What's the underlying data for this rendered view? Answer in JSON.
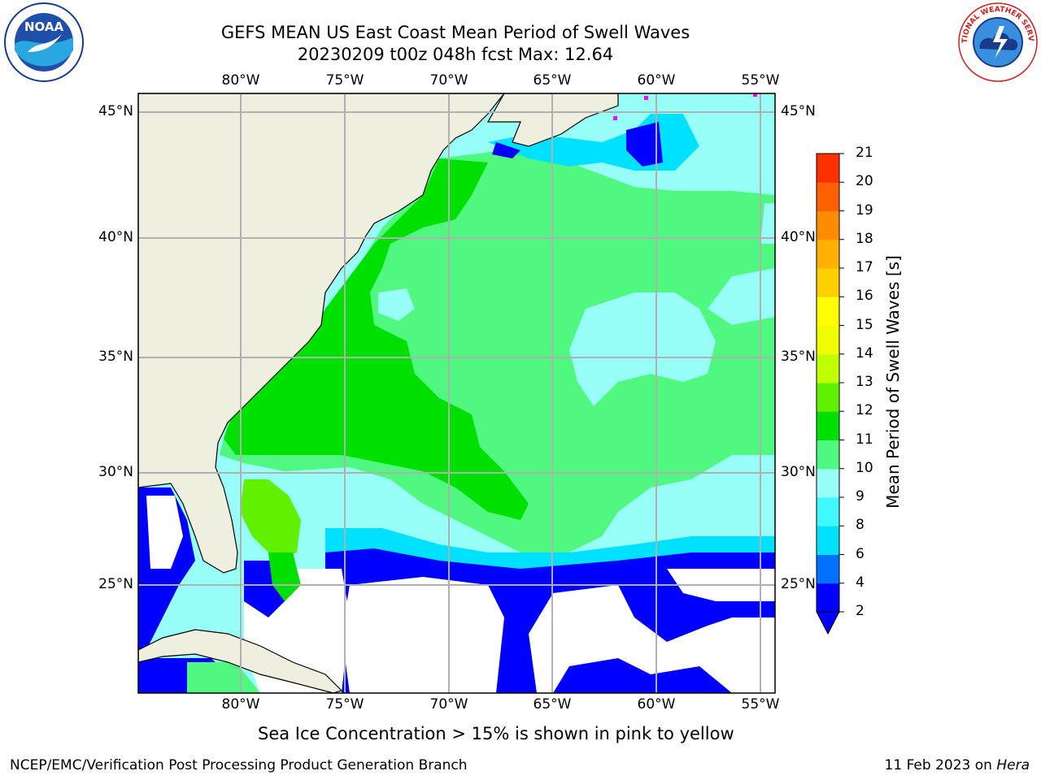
{
  "header": {
    "title_line1": "GEFS MEAN US East Coast Mean Period of Swell Waves",
    "title_line2": "20230209 t00z 048h fcst   Max: 12.64"
  },
  "logos": {
    "noaa_text": "NOAA",
    "nws_text": "NATIONAL WEATHER SERVICE"
  },
  "map": {
    "lon_labels": [
      "80°W",
      "75°W",
      "70°W",
      "65°W",
      "60°W",
      "55°W"
    ],
    "lat_labels": [
      "45°N",
      "40°N",
      "35°N",
      "30°N",
      "25°N"
    ],
    "colors": {
      "land": "#efefe0",
      "gridline": "#b0b0b0",
      "no_data": "#ffffff",
      "sea_ice": "#ff00ff"
    }
  },
  "colorbar": {
    "label": "Mean Period of Swell Waves [s]",
    "ticks": [
      "2",
      "4",
      "6",
      "8",
      "9",
      "10",
      "11",
      "12",
      "13",
      "14",
      "15",
      "16",
      "17",
      "18",
      "19",
      "20",
      "21"
    ],
    "colors": [
      "#0000ff",
      "#0070ff",
      "#00e0ff",
      "#40f8ff",
      "#98fff8",
      "#50f880",
      "#00e000",
      "#60f000",
      "#c0ff00",
      "#f0ff00",
      "#ffff00",
      "#ffd000",
      "#ffb000",
      "#ff8c00",
      "#ff6000",
      "#ff3000",
      "#ff0000"
    ],
    "extend_color": "#0000ff"
  },
  "subtitle": "Sea Ice Concentration > 15% is shown in pink to yellow",
  "footer": {
    "left": "NCEP/EMC/Verification Post Processing Product Generation Branch",
    "right_date": "11 Feb 2023 on ",
    "right_host": "Hera"
  }
}
